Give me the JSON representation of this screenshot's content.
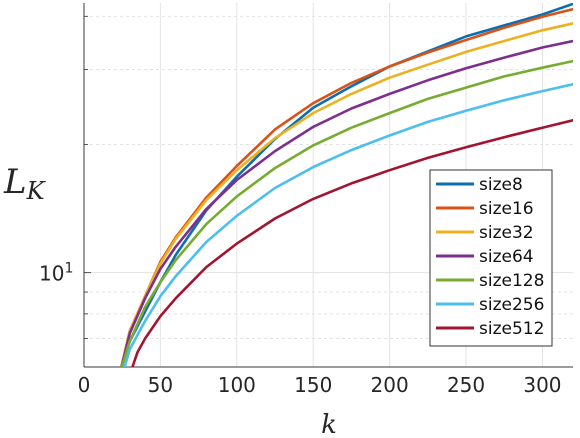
{
  "chart_data": {
    "type": "line",
    "title": "",
    "xlabel": "k",
    "ylabel": "L_K",
    "ylabel_main": "L",
    "ylabel_sub": "K",
    "xlim": [
      0,
      320
    ],
    "ylim": [
      6.0,
      43
    ],
    "yscale": "log",
    "grid": true,
    "legend_position": "lower-right",
    "x_ticks": [
      {
        "value": 0,
        "label": "0"
      },
      {
        "value": 50,
        "label": "50"
      },
      {
        "value": 100,
        "label": "100"
      },
      {
        "value": 150,
        "label": "150"
      },
      {
        "value": 200,
        "label": "200"
      },
      {
        "value": 250,
        "label": "250"
      },
      {
        "value": 300,
        "label": "300"
      }
    ],
    "y_ticks": [
      {
        "value": 10,
        "label_base": "10",
        "label_exp": "1"
      }
    ],
    "y_minor_ticks": [
      7,
      8,
      9,
      20,
      30,
      40
    ],
    "series": [
      {
        "name": "size8",
        "color": "#0C6EB0",
        "x": [
          24,
          30,
          40,
          50,
          60,
          80,
          100,
          125,
          150,
          175,
          200,
          225,
          250,
          275,
          300,
          320
        ],
        "y": [
          5.9,
          6.9,
          8.1,
          9.5,
          11.0,
          14.0,
          16.8,
          20.6,
          24.4,
          27.4,
          30.5,
          33.1,
          35.9,
          38.1,
          40.4,
          42.8
        ]
      },
      {
        "name": "size16",
        "color": "#D95319",
        "x": [
          24,
          30,
          40,
          50,
          60,
          80,
          100,
          125,
          150,
          175,
          200,
          225,
          250,
          275,
          300,
          320
        ],
        "y": [
          5.9,
          7.3,
          8.8,
          10.6,
          12.1,
          15.0,
          17.8,
          21.7,
          25.0,
          27.9,
          30.5,
          32.9,
          35.2,
          37.6,
          39.9,
          41.6
        ]
      },
      {
        "name": "size32",
        "color": "#EDB120",
        "x": [
          24,
          30,
          40,
          50,
          60,
          80,
          100,
          125,
          150,
          175,
          200,
          225,
          250,
          275,
          300,
          320
        ],
        "y": [
          5.9,
          7.3,
          8.8,
          10.5,
          12.0,
          14.8,
          17.4,
          20.7,
          23.7,
          26.3,
          28.7,
          30.8,
          33.0,
          35.0,
          37.1,
          38.5
        ]
      },
      {
        "name": "size64",
        "color": "#7E2F8E",
        "x": [
          24,
          30,
          40,
          50,
          60,
          80,
          100,
          125,
          150,
          175,
          200,
          225,
          250,
          275,
          300,
          320
        ],
        "y": [
          5.9,
          7.2,
          8.7,
          10.2,
          11.5,
          14.1,
          16.5,
          19.3,
          22.0,
          24.3,
          26.3,
          28.3,
          30.2,
          32.0,
          33.8,
          35.0
        ]
      },
      {
        "name": "size128",
        "color": "#77AC30",
        "x": [
          24,
          30,
          40,
          50,
          60,
          80,
          100,
          125,
          150,
          175,
          200,
          225,
          250,
          275,
          300,
          320
        ],
        "y": [
          5.9,
          6.9,
          8.3,
          9.5,
          10.7,
          13.0,
          15.1,
          17.6,
          19.9,
          21.9,
          23.7,
          25.6,
          27.2,
          28.9,
          30.3,
          31.4
        ]
      },
      {
        "name": "size256",
        "color": "#4DBEEE",
        "x": [
          26,
          30,
          40,
          50,
          60,
          80,
          100,
          125,
          150,
          175,
          200,
          225,
          250,
          275,
          300,
          320
        ],
        "y": [
          5.9,
          6.6,
          7.7,
          8.8,
          9.8,
          11.8,
          13.6,
          15.8,
          17.7,
          19.4,
          21.0,
          22.6,
          24.0,
          25.4,
          26.7,
          27.7
        ]
      },
      {
        "name": "size512",
        "color": "#A2142F",
        "x": [
          31,
          35,
          40,
          50,
          60,
          80,
          100,
          125,
          150,
          175,
          200,
          225,
          250,
          275,
          300,
          320
        ],
        "y": [
          5.9,
          6.5,
          7.0,
          7.9,
          8.7,
          10.3,
          11.7,
          13.4,
          14.9,
          16.2,
          17.4,
          18.6,
          19.7,
          20.8,
          21.9,
          22.8
        ]
      }
    ]
  }
}
